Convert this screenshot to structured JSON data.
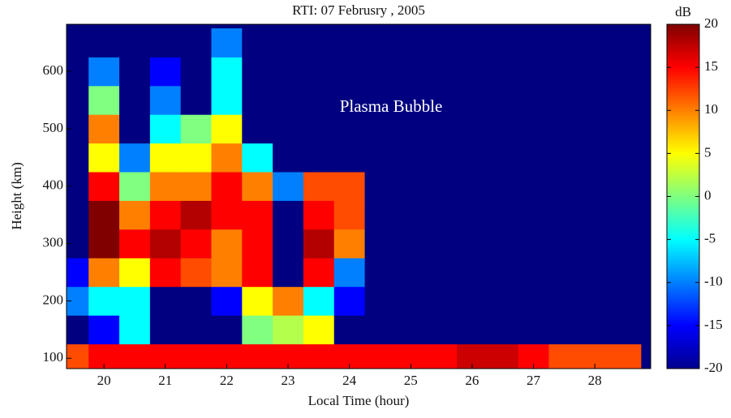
{
  "chart_data": {
    "type": "heatmap",
    "title": "RTI:  07 Februsry , 2005",
    "xlabel": "Local Time (hour)",
    "ylabel": "Height (km)",
    "annotation": "Plasma Bubble",
    "colorbar_label": "dB",
    "xlim": [
      19.39,
      28.91
    ],
    "ylim": [
      82,
      682
    ],
    "xticks": [
      20,
      21,
      22,
      23,
      24,
      25,
      26,
      27,
      28
    ],
    "yticks": [
      100,
      200,
      300,
      400,
      500,
      600
    ],
    "clim": [
      -20,
      20
    ],
    "cticks": [
      -20,
      -15,
      -10,
      -5,
      0,
      5,
      10,
      15,
      20
    ],
    "colormap": "jet",
    "x": [
      19.5,
      20,
      20.5,
      21,
      21.5,
      22,
      22.5,
      23,
      23.5,
      24,
      24.5,
      25,
      25.5,
      26,
      26.5,
      27,
      27.5,
      28,
      28.5
    ],
    "y": [
      100,
      150,
      200,
      250,
      300,
      350,
      400,
      450,
      500,
      550,
      600,
      650
    ],
    "z": [
      [
        12,
        15,
        15,
        15,
        15,
        15,
        15,
        15,
        15,
        15,
        15,
        15,
        15,
        17,
        17,
        15,
        12,
        12,
        12
      ],
      [
        -20,
        -15,
        -5,
        -20,
        -20,
        -20,
        0,
        2,
        5,
        -20,
        -20,
        -20,
        -20,
        -20,
        -20,
        -20,
        -20,
        -20,
        -20
      ],
      [
        -10,
        -5,
        -5,
        -20,
        -20,
        -15,
        5,
        10,
        -5,
        -15,
        -20,
        -20,
        -20,
        -20,
        -20,
        -20,
        -20,
        -20,
        -20
      ],
      [
        -15,
        10,
        5,
        15,
        12,
        10,
        15,
        -20,
        15,
        -10,
        -20,
        -20,
        -20,
        -20,
        -20,
        -20,
        -20,
        -20,
        -20
      ],
      [
        -20,
        20,
        15,
        18,
        15,
        10,
        15,
        -20,
        18,
        10,
        -20,
        -20,
        -20,
        -20,
        -20,
        -20,
        -20,
        -20,
        -20
      ],
      [
        -20,
        20,
        10,
        15,
        18,
        15,
        15,
        -20,
        15,
        12,
        -20,
        -20,
        -20,
        -20,
        -20,
        -20,
        -20,
        -20,
        -20
      ],
      [
        -20,
        15,
        0,
        10,
        10,
        15,
        10,
        -10,
        12,
        12,
        -20,
        -20,
        -20,
        -20,
        -20,
        -20,
        -20,
        -20,
        -20
      ],
      [
        -20,
        5,
        -10,
        5,
        5,
        10,
        -5,
        -20,
        -20,
        -20,
        -20,
        -20,
        -20,
        -20,
        -20,
        -20,
        -20,
        -20,
        -20
      ],
      [
        -20,
        10,
        -20,
        -5,
        0,
        5,
        -20,
        -20,
        -20,
        -20,
        -20,
        -20,
        -20,
        -20,
        -20,
        -20,
        -20,
        -20,
        -20
      ],
      [
        -20,
        0,
        -20,
        -10,
        -20,
        -5,
        -20,
        -20,
        -20,
        -20,
        -20,
        -20,
        -20,
        -20,
        -20,
        -20,
        -20,
        -20,
        -20
      ],
      [
        -20,
        -10,
        -20,
        -15,
        -20,
        -5,
        -20,
        -20,
        -20,
        -20,
        -20,
        -20,
        -20,
        -20,
        -20,
        -20,
        -20,
        -20,
        -20
      ],
      [
        -20,
        -20,
        -20,
        -20,
        -20,
        -10,
        -20,
        -20,
        -20,
        -20,
        -20,
        -20,
        -20,
        -20,
        -20,
        -20,
        -20,
        -20,
        -20
      ]
    ]
  }
}
